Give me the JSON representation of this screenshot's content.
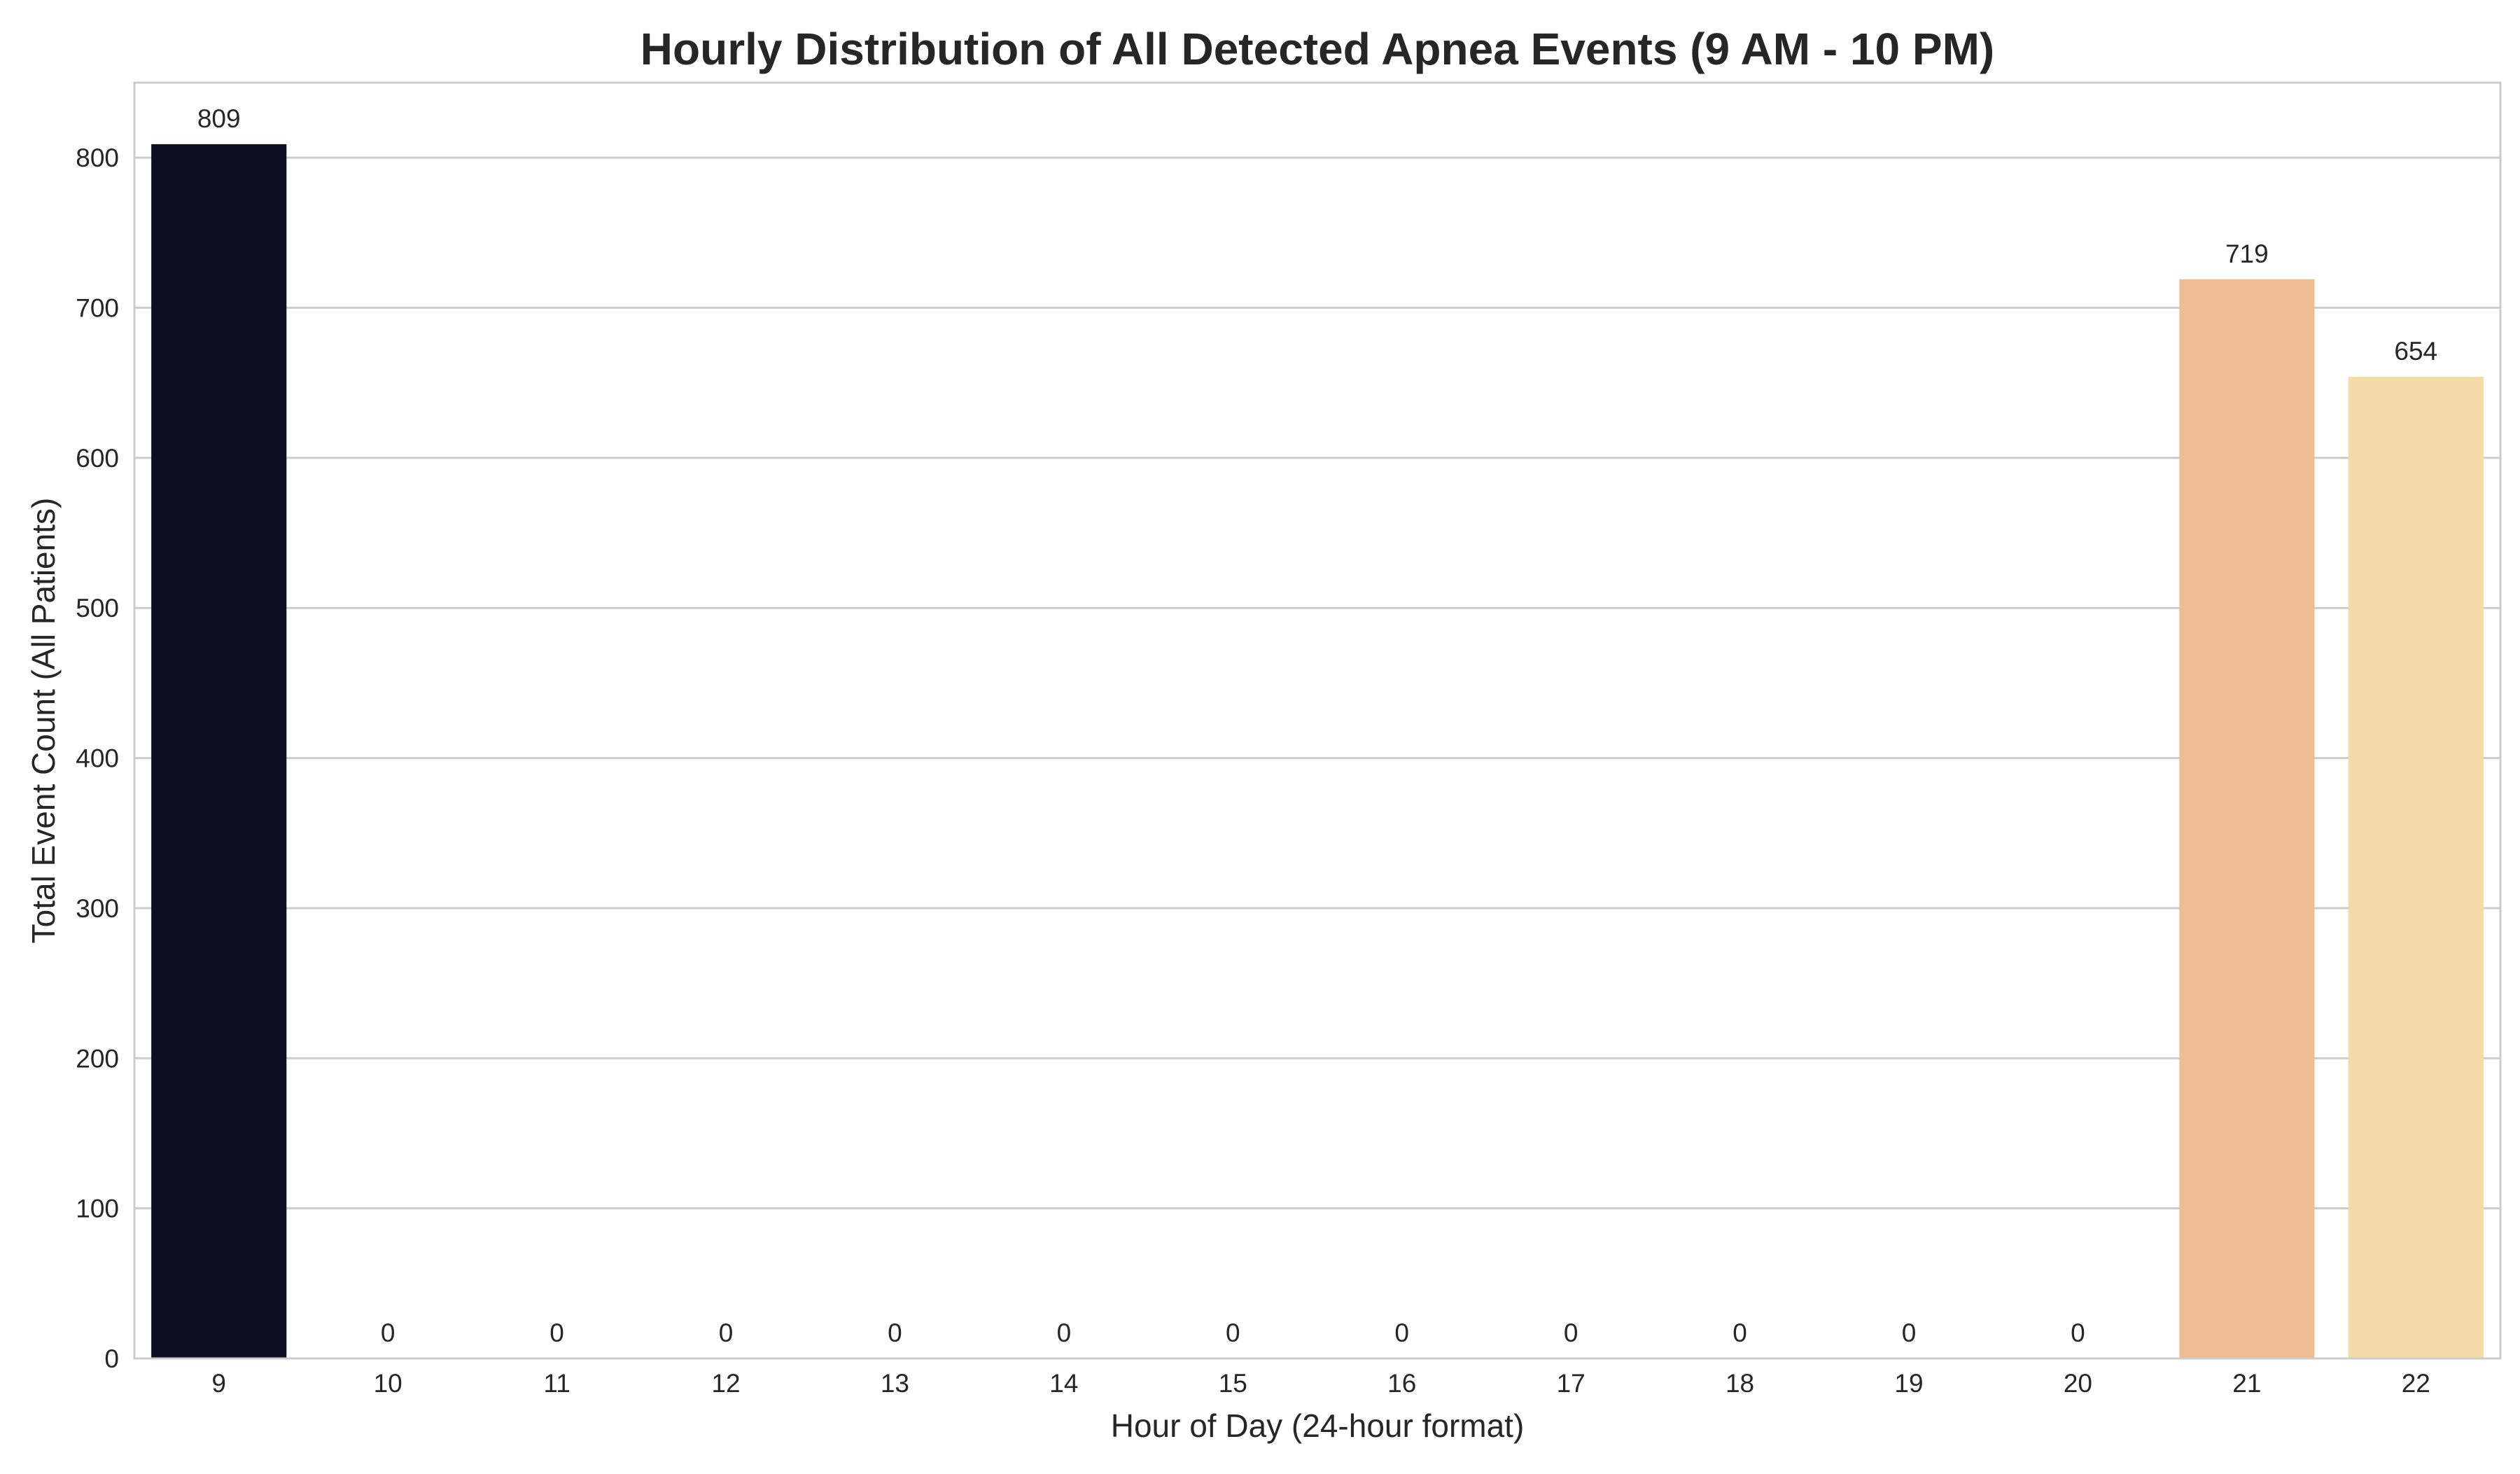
{
  "chart_data": {
    "type": "bar",
    "title": "Hourly Distribution of All Detected Apnea Events (9 AM - 10 PM)",
    "xlabel": "Hour of Day (24-hour format)",
    "ylabel": "Total Event Count (All Patients)",
    "categories": [
      "9",
      "10",
      "11",
      "12",
      "13",
      "14",
      "15",
      "16",
      "17",
      "18",
      "19",
      "20",
      "21",
      "22"
    ],
    "values": [
      809,
      0,
      0,
      0,
      0,
      0,
      0,
      0,
      0,
      0,
      0,
      0,
      719,
      654
    ],
    "data_labels": [
      "809",
      "0",
      "0",
      "0",
      "0",
      "0",
      "0",
      "0",
      "0",
      "0",
      "0",
      "0",
      "719",
      "654"
    ],
    "bar_colors": [
      "#0f0d21",
      "#1c1433",
      "#2d1b4e",
      "#44226a",
      "#5c2a7e",
      "#74307f",
      "#8d377c",
      "#a73e74",
      "#c24b63",
      "#d95c4f",
      "#e8773d",
      "#f09954",
      "#efbd91",
      "#f3dba7"
    ],
    "ylim": [
      0,
      850
    ],
    "yticks": [
      0,
      100,
      200,
      300,
      400,
      500,
      600,
      700,
      800
    ],
    "ytick_labels": [
      "0",
      "100",
      "200",
      "300",
      "400",
      "500",
      "600",
      "700",
      "800"
    ],
    "grid": "horizontal",
    "legend": "none"
  },
  "colors": {
    "text": "#262626",
    "grid": "#cccccc",
    "frame": "#cccccc",
    "background": "#ffffff"
  }
}
